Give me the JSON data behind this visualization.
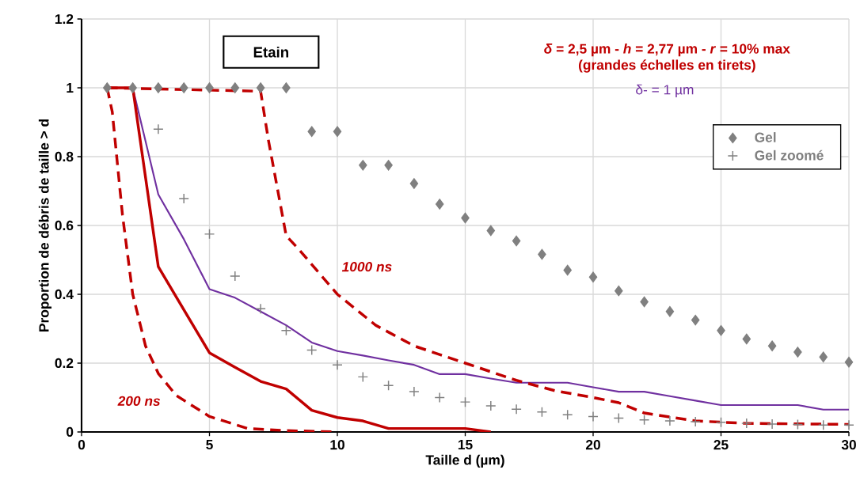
{
  "chart_data": {
    "type": "line",
    "title": "Etain",
    "subtitle": "*δ* = 2,5 µm - *h* = 2,77 µm - *r* = 10% max",
    "annotations": [
      "(grandes échelles en tirets)"
    ],
    "xlabel": "Taille d (µm)",
    "ylabel": "Proportion de débris de taille > d",
    "xlim": [
      0,
      30
    ],
    "ylim": [
      0,
      1.2
    ],
    "xticks": [
      0,
      5,
      10,
      15,
      20,
      25,
      30
    ],
    "yticks": [
      0,
      0.2,
      0.4,
      0.6,
      0.8,
      1,
      1.2
    ],
    "grid": true,
    "legend": "top right",
    "series": [
      {
        "name": "Gel",
        "type": "scatter",
        "marker": "diamond",
        "color": "#808080",
        "x": [
          1,
          2,
          3,
          4,
          5,
          6,
          7,
          8,
          9,
          10,
          11,
          12,
          13,
          14,
          15,
          16,
          17,
          18,
          19,
          20,
          21,
          22,
          23,
          24,
          25,
          26,
          27,
          28,
          29,
          30
        ],
        "values": [
          1,
          1,
          1,
          1,
          1,
          1,
          1,
          1,
          0.873,
          0.873,
          0.775,
          0.775,
          0.722,
          0.662,
          0.622,
          0.585,
          0.555,
          0.516,
          0.47,
          0.45,
          0.41,
          0.378,
          0.35,
          0.325,
          0.295,
          0.27,
          0.25,
          0.232,
          0.218,
          0.203
        ]
      },
      {
        "name": "Gel zoomé",
        "type": "scatter",
        "marker": "cross",
        "color": "#808080",
        "x": [
          3,
          4,
          5,
          6,
          7,
          8,
          9,
          10,
          11,
          12,
          13,
          14,
          15,
          16,
          17,
          18,
          19,
          20,
          21,
          22,
          23,
          24,
          25,
          26,
          27,
          28,
          29,
          30
        ],
        "values": [
          0.88,
          0.678,
          0.575,
          0.453,
          0.358,
          0.295,
          0.238,
          0.195,
          0.16,
          0.135,
          0.117,
          0.1,
          0.087,
          0.076,
          0.066,
          0.058,
          0.05,
          0.045,
          0.04,
          0.035,
          0.032,
          0.03,
          0.028,
          0.025,
          0.023,
          0.022,
          0.02,
          0.02
        ]
      },
      {
        "name": "δ- = 1 µm",
        "line_style": "solid",
        "color": "#7030a0",
        "x": [
          1,
          2,
          3,
          4,
          5,
          6,
          7,
          8,
          9,
          10,
          11,
          12,
          13,
          14,
          15,
          16,
          17,
          18,
          19,
          20,
          21,
          22,
          23,
          24,
          25,
          26,
          27,
          28,
          29,
          30
        ],
        "values": [
          1,
          1,
          0.69,
          0.56,
          0.415,
          0.39,
          0.35,
          0.31,
          0.26,
          0.235,
          0.222,
          0.208,
          0.195,
          0.168,
          0.168,
          0.155,
          0.143,
          0.143,
          0.143,
          0.13,
          0.117,
          0.117,
          0.104,
          0.091,
          0.078,
          0.078,
          0.078,
          0.078,
          0.065,
          0.065
        ]
      },
      {
        "line_style": "solid",
        "color": "#c00000",
        "x": [
          1,
          2,
          3,
          4,
          5,
          6,
          7,
          8,
          9,
          10,
          11,
          12,
          13,
          14,
          15,
          16
        ],
        "values": [
          1,
          1,
          0.48,
          0.355,
          0.23,
          0.188,
          0.147,
          0.125,
          0.063,
          0.042,
          0.032,
          0.01,
          0.01,
          0.01,
          0.01,
          0
        ]
      },
      {
        "name": "200 ns",
        "line_style": "dashed",
        "color": "#c00000",
        "x": [
          1,
          1.2,
          1.6,
          2,
          2.5,
          3,
          3.7,
          5,
          6.5,
          8,
          10
        ],
        "values": [
          1,
          0.93,
          0.63,
          0.4,
          0.25,
          0.17,
          0.106,
          0.045,
          0.01,
          0.004,
          0
        ]
      },
      {
        "name": "1000 ns",
        "line_style": "dashed",
        "color": "#c00000",
        "x": [
          1,
          7,
          7.3,
          8,
          8.5,
          10,
          11.5,
          13,
          15,
          17,
          18.5,
          20,
          21,
          22,
          24,
          26,
          30
        ],
        "values": [
          1,
          0.99,
          0.85,
          0.57,
          0.53,
          0.4,
          0.31,
          0.25,
          0.2,
          0.15,
          0.12,
          0.1,
          0.085,
          0.055,
          0.032,
          0.025,
          0.022
        ]
      }
    ]
  }
}
